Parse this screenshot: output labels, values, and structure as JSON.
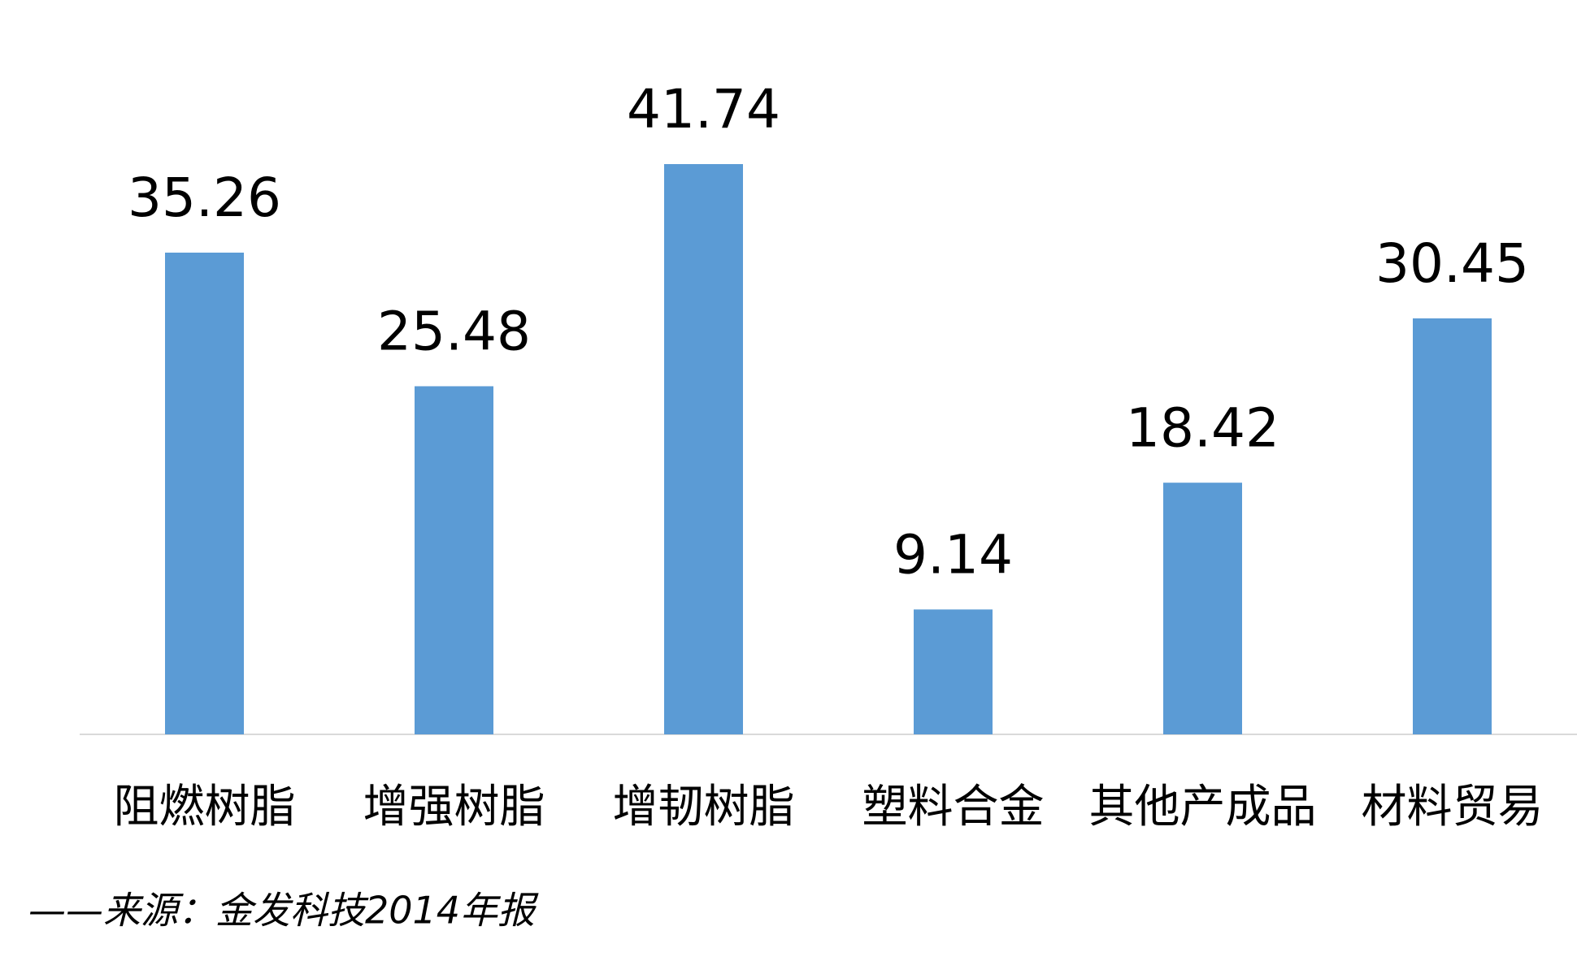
{
  "chart_data": {
    "type": "bar",
    "categories": [
      "阻燃树脂",
      "增强树脂",
      "增韧树脂",
      "塑料合金",
      "其他产成品",
      "材料贸易"
    ],
    "values": [
      35.26,
      25.48,
      41.74,
      9.14,
      18.42,
      30.45
    ],
    "color": "#5b9bd5",
    "source": "——来源：金发科技2014年报"
  }
}
